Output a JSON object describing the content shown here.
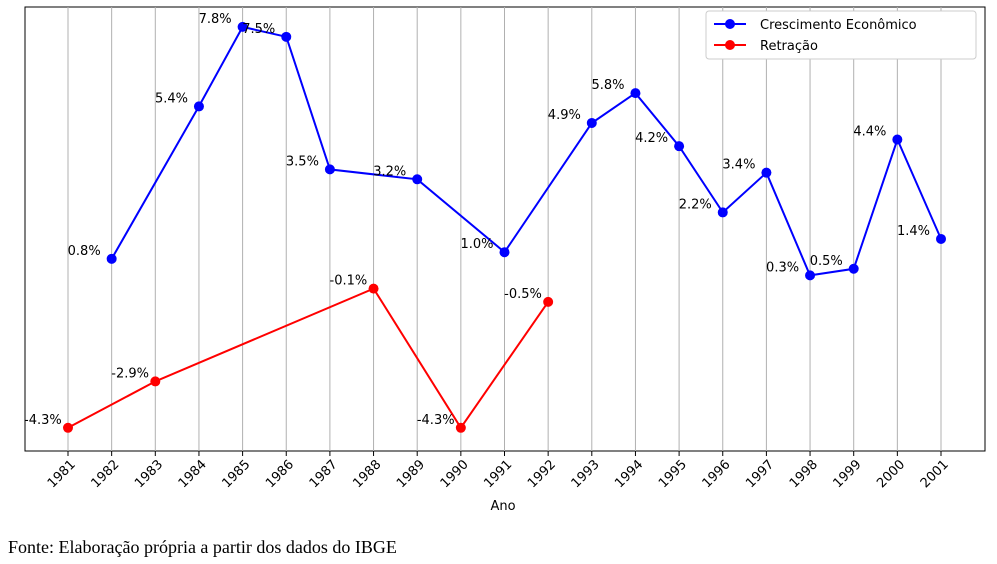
{
  "chart_data": {
    "type": "line",
    "xlabel": "Ano",
    "ylabel": "",
    "title": "",
    "ylim": [
      -5.0,
      8.4
    ],
    "grid": "vertical",
    "legend_position": "top-right",
    "categories": [
      "1981",
      "1982",
      "1983",
      "1984",
      "1985",
      "1986",
      "1987",
      "1988",
      "1989",
      "1990",
      "1991",
      "1992",
      "1993",
      "1994",
      "1995",
      "1996",
      "1997",
      "1998",
      "1999",
      "2000",
      "2001"
    ],
    "series": [
      {
        "name": "Crescimento Econômico",
        "color": "#0000ff",
        "points": [
          {
            "x": "1982",
            "y": 0.8,
            "label": "0.8%"
          },
          {
            "x": "1984",
            "y": 5.4,
            "label": "5.4%"
          },
          {
            "x": "1985",
            "y": 7.8,
            "label": "7.8%"
          },
          {
            "x": "1986",
            "y": 7.5,
            "label": "7.5%"
          },
          {
            "x": "1987",
            "y": 3.5,
            "label": "3.5%"
          },
          {
            "x": "1989",
            "y": 3.2,
            "label": "3.2%"
          },
          {
            "x": "1991",
            "y": 1.0,
            "label": "1.0%"
          },
          {
            "x": "1993",
            "y": 4.9,
            "label": "4.9%"
          },
          {
            "x": "1994",
            "y": 5.8,
            "label": "5.8%"
          },
          {
            "x": "1995",
            "y": 4.2,
            "label": "4.2%"
          },
          {
            "x": "1996",
            "y": 2.2,
            "label": "2.2%"
          },
          {
            "x": "1997",
            "y": 3.4,
            "label": "3.4%"
          },
          {
            "x": "1998",
            "y": 0.3,
            "label": "0.3%"
          },
          {
            "x": "1999",
            "y": 0.5,
            "label": "0.5%"
          },
          {
            "x": "2000",
            "y": 4.4,
            "label": "4.4%"
          },
          {
            "x": "2001",
            "y": 1.4,
            "label": "1.4%"
          }
        ]
      },
      {
        "name": "Retração",
        "color": "#ff0000",
        "points": [
          {
            "x": "1981",
            "y": -4.3,
            "label": "-4.3%"
          },
          {
            "x": "1983",
            "y": -2.9,
            "label": "-2.9%"
          },
          {
            "x": "1988",
            "y": -0.1,
            "label": "-0.1%"
          },
          {
            "x": "1990",
            "y": -4.3,
            "label": "-4.3%"
          },
          {
            "x": "1992",
            "y": -0.5,
            "label": "-0.5%"
          }
        ]
      }
    ]
  },
  "source_note": "Fonte: Elaboração própria a partir dos dados do IBGE"
}
